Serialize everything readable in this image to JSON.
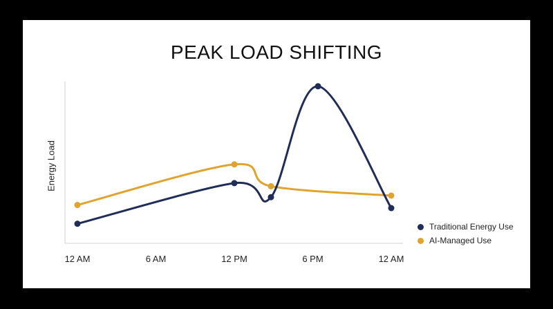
{
  "chart_data": {
    "type": "line",
    "title": "PEAK LOAD SHIFTING",
    "xlabel": "",
    "ylabel": "Energy Load",
    "x_tick_labels": [
      "12 AM",
      "6 AM",
      "12 PM",
      "6 PM",
      "12 AM"
    ],
    "xlim": [
      0,
      24
    ],
    "ylim": [
      0,
      100
    ],
    "legend_position": "right",
    "grid": false,
    "series": [
      {
        "name": "Traditional Energy Use",
        "color": "#1f2d57",
        "points": [
          {
            "x": 0,
            "y": 9
          },
          {
            "x": 12,
            "y": 35
          },
          {
            "x": 14.8,
            "y": 26
          },
          {
            "x": 18.4,
            "y": 97
          },
          {
            "x": 24,
            "y": 19
          }
        ]
      },
      {
        "name": "AI-Managed Use",
        "color": "#e0a32e",
        "points": [
          {
            "x": 0,
            "y": 21
          },
          {
            "x": 12,
            "y": 47
          },
          {
            "x": 14.8,
            "y": 33
          },
          {
            "x": 24,
            "y": 27
          }
        ]
      }
    ]
  }
}
